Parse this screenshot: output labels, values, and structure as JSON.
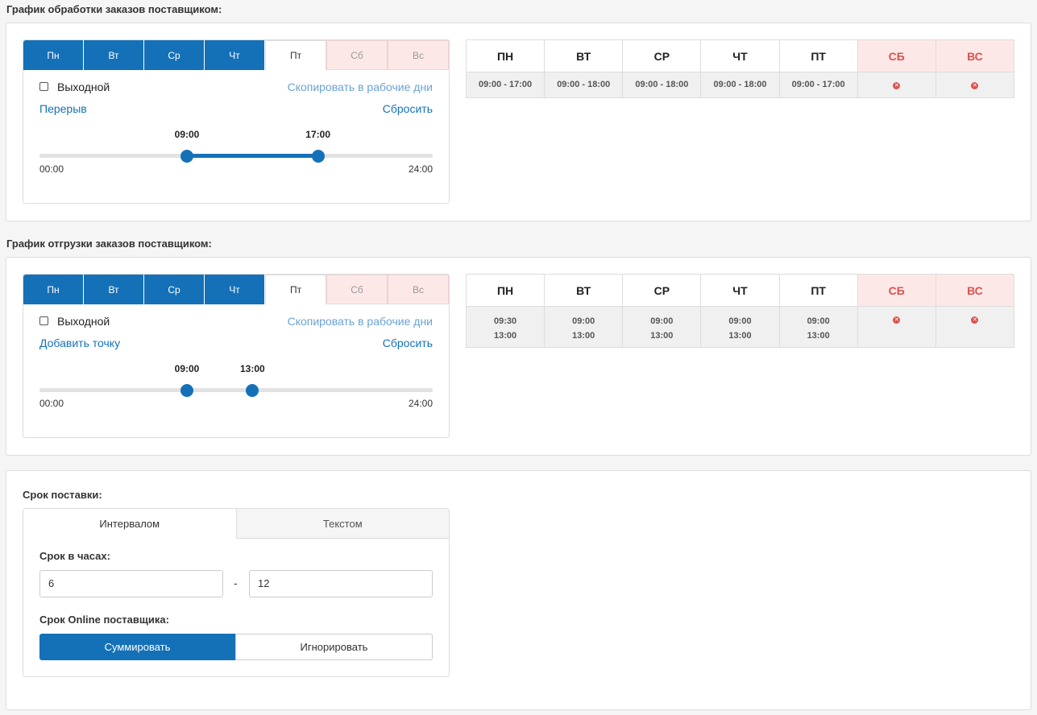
{
  "processing": {
    "title": "График обработки заказов поставщиком:",
    "day_tabs": [
      "Пн",
      "Вт",
      "Ср",
      "Чт",
      "Пт",
      "Сб",
      "Вс"
    ],
    "day_off_label": "Выходной",
    "copy_link": "Скопировать в рабочие дни",
    "left_link": "Перерыв",
    "reset_link": "Сбросить",
    "slider": {
      "from": "09:00",
      "to": "17:00",
      "min_label": "00:00",
      "max_label": "24:00",
      "from_value": 9,
      "to_value": 17,
      "max_value": 24
    },
    "table_headers": [
      "ПН",
      "ВТ",
      "СР",
      "ЧТ",
      "ПТ",
      "СБ",
      "ВС"
    ],
    "table_rows": [
      [
        "09:00 - 17:00",
        "09:00 - 18:00",
        "09:00 - 18:00",
        "09:00 - 18:00",
        "09:00 - 17:00"
      ]
    ]
  },
  "shipping": {
    "title": "График отгрузки заказов поставщиком:",
    "day_tabs": [
      "Пн",
      "Вт",
      "Ср",
      "Чт",
      "Пт",
      "Сб",
      "Вс"
    ],
    "day_off_label": "Выходной",
    "copy_link": "Скопировать в рабочие дни",
    "left_link": "Добавить точку",
    "reset_link": "Сбросить",
    "slider": {
      "from": "09:00",
      "to": "13:00",
      "min_label": "00:00",
      "max_label": "24:00",
      "from_value": 9,
      "to_value": 13,
      "max_value": 24
    },
    "table_headers": [
      "ПН",
      "ВТ",
      "СР",
      "ЧТ",
      "ПТ",
      "СБ",
      "ВС"
    ],
    "table_rows": [
      [
        "09:30",
        "09:00",
        "09:00",
        "09:00",
        "09:00"
      ],
      [
        "13:00",
        "13:00",
        "13:00",
        "13:00",
        "13:00"
      ]
    ]
  },
  "delivery": {
    "title": "Срок поставки:",
    "tabs": [
      "Интервалом",
      "Текстом"
    ],
    "hours_label": "Срок в часах:",
    "hours_from": "6",
    "hours_to": "12",
    "dash": "-",
    "online_label": "Срок Online поставщика:",
    "options": [
      "Суммировать",
      "Игнорировать"
    ]
  },
  "colors": {
    "accent": "#1471b8",
    "weekend_bg": "#fde8e8",
    "weekend_text": "#d9534f"
  }
}
